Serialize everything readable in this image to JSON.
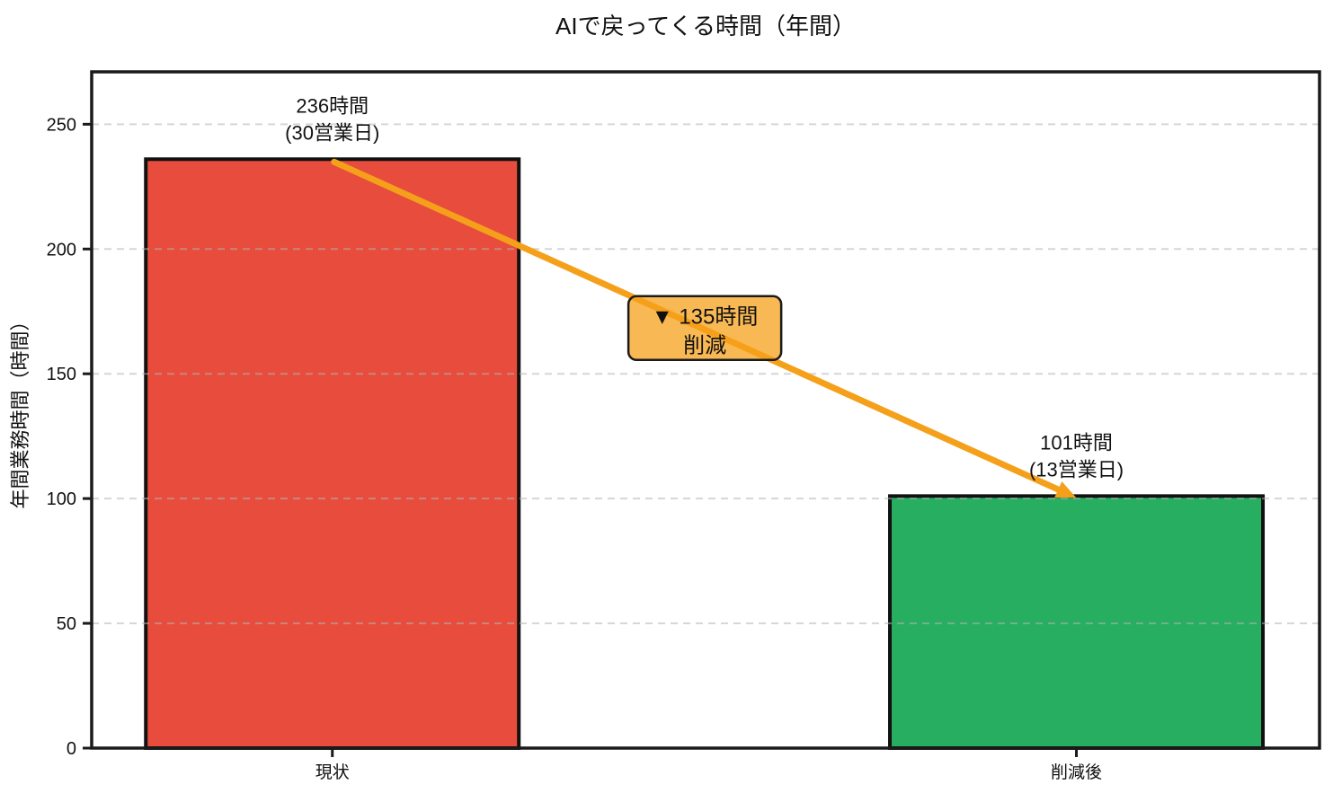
{
  "title": "AIで戻ってくる時間（年間）",
  "chart_data": {
    "type": "bar",
    "title": "AIで戻ってくる時間（年間）",
    "xlabel": "",
    "ylabel": "年間業務時間（時間）",
    "categories": [
      "現状",
      "削減後"
    ],
    "values": [
      236,
      101
    ],
    "bar_labels": [
      [
        "236時間",
        "(30営業日)"
      ],
      [
        "101時間",
        "(13営業日)"
      ]
    ],
    "bar_colors": [
      "#E74C3C",
      "#27AE60"
    ],
    "bar_edge_color": "#111111",
    "yticks": [
      0,
      50,
      100,
      150,
      200,
      250
    ],
    "ylim": [
      0,
      271
    ],
    "grid": "horizontal-dashed-over-bars",
    "grid_color": "#B4B4B4",
    "axis_color": "#1a1a1a",
    "annotation": {
      "lines": [
        "▼ 135時間",
        "削減"
      ],
      "fill_color": "#F5A01B",
      "fill_opacity": 0.75,
      "border_color": "#1a1a1a",
      "text_color": "#111111"
    },
    "arrow": {
      "color": "#F5A01B",
      "from_value": 236,
      "to_value": 101
    },
    "legend": null
  }
}
